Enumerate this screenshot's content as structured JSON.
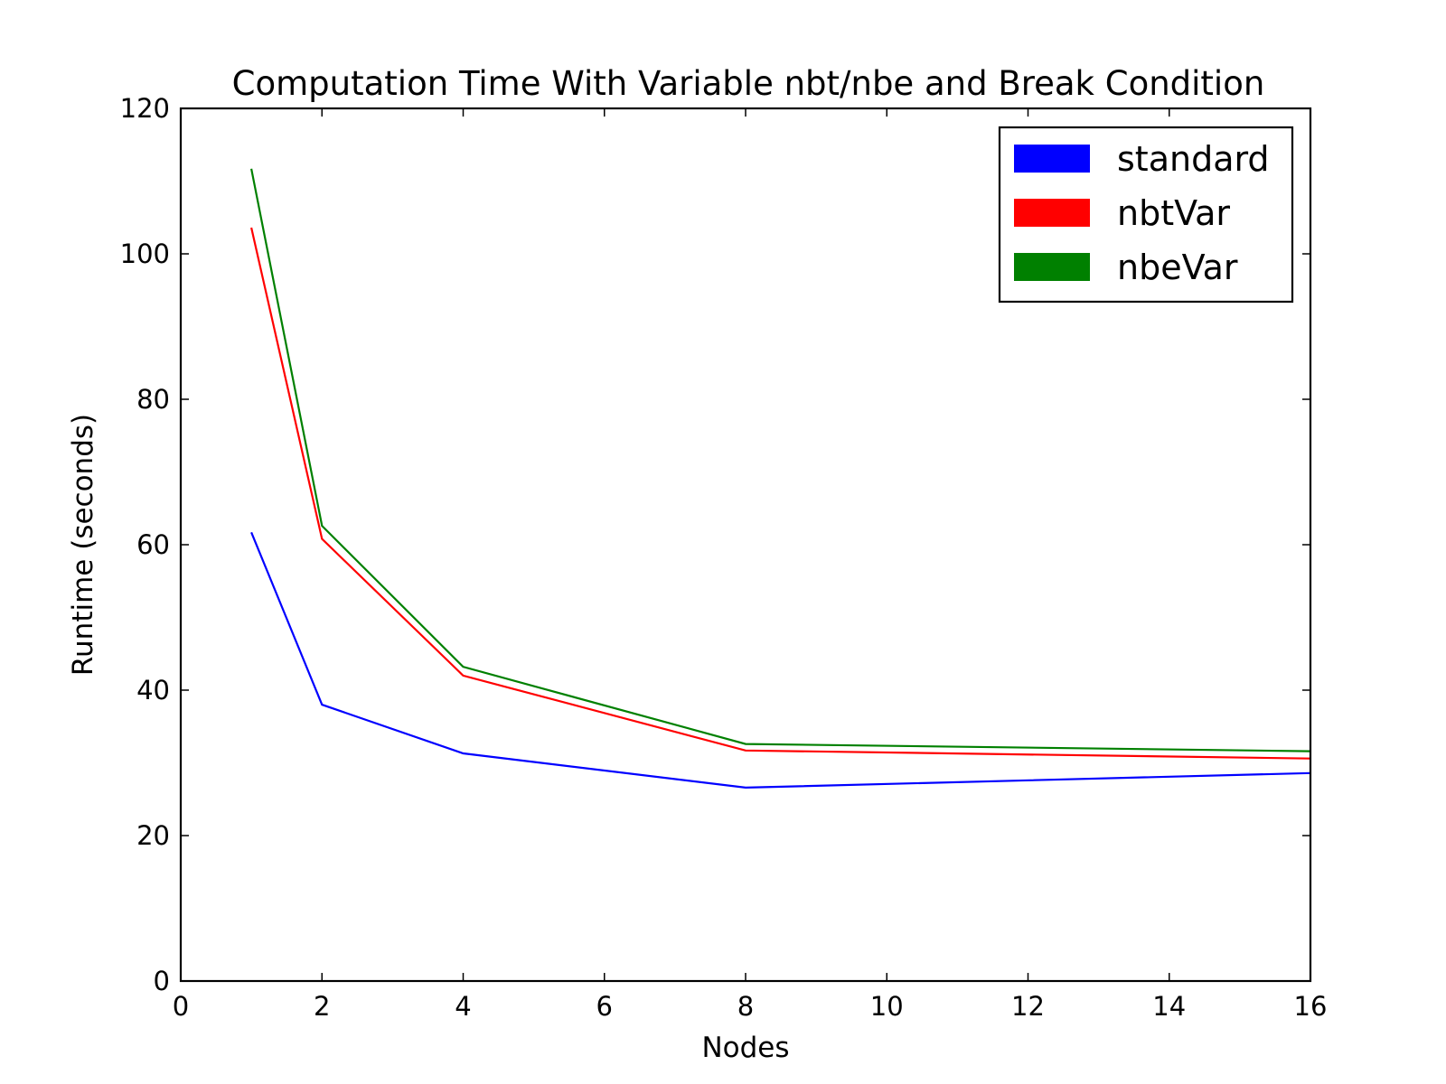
{
  "chart_data": {
    "type": "line",
    "title": "Computation Time With Variable nbt/nbe and Break Condition",
    "xlabel": "Nodes",
    "ylabel": "Runtime (seconds)",
    "xlim": [
      0,
      16
    ],
    "ylim": [
      0,
      120
    ],
    "xticks": [
      "0",
      "2",
      "4",
      "6",
      "8",
      "10",
      "12",
      "14",
      "16"
    ],
    "yticks": [
      "0",
      "20",
      "40",
      "60",
      "80",
      "100",
      "120"
    ],
    "grid": false,
    "legend_position": "top-right",
    "x": [
      1,
      2,
      4,
      8,
      16
    ],
    "series": [
      {
        "name": "standard",
        "color": "#0000ff",
        "values": [
          61.7,
          38.0,
          31.3,
          26.6,
          28.6
        ]
      },
      {
        "name": "nbtVar",
        "color": "#ff0000",
        "values": [
          103.6,
          60.8,
          42.0,
          31.7,
          30.6
        ]
      },
      {
        "name": "nbeVar",
        "color": "#008000",
        "values": [
          111.7,
          62.6,
          43.2,
          32.6,
          31.6
        ]
      }
    ]
  }
}
